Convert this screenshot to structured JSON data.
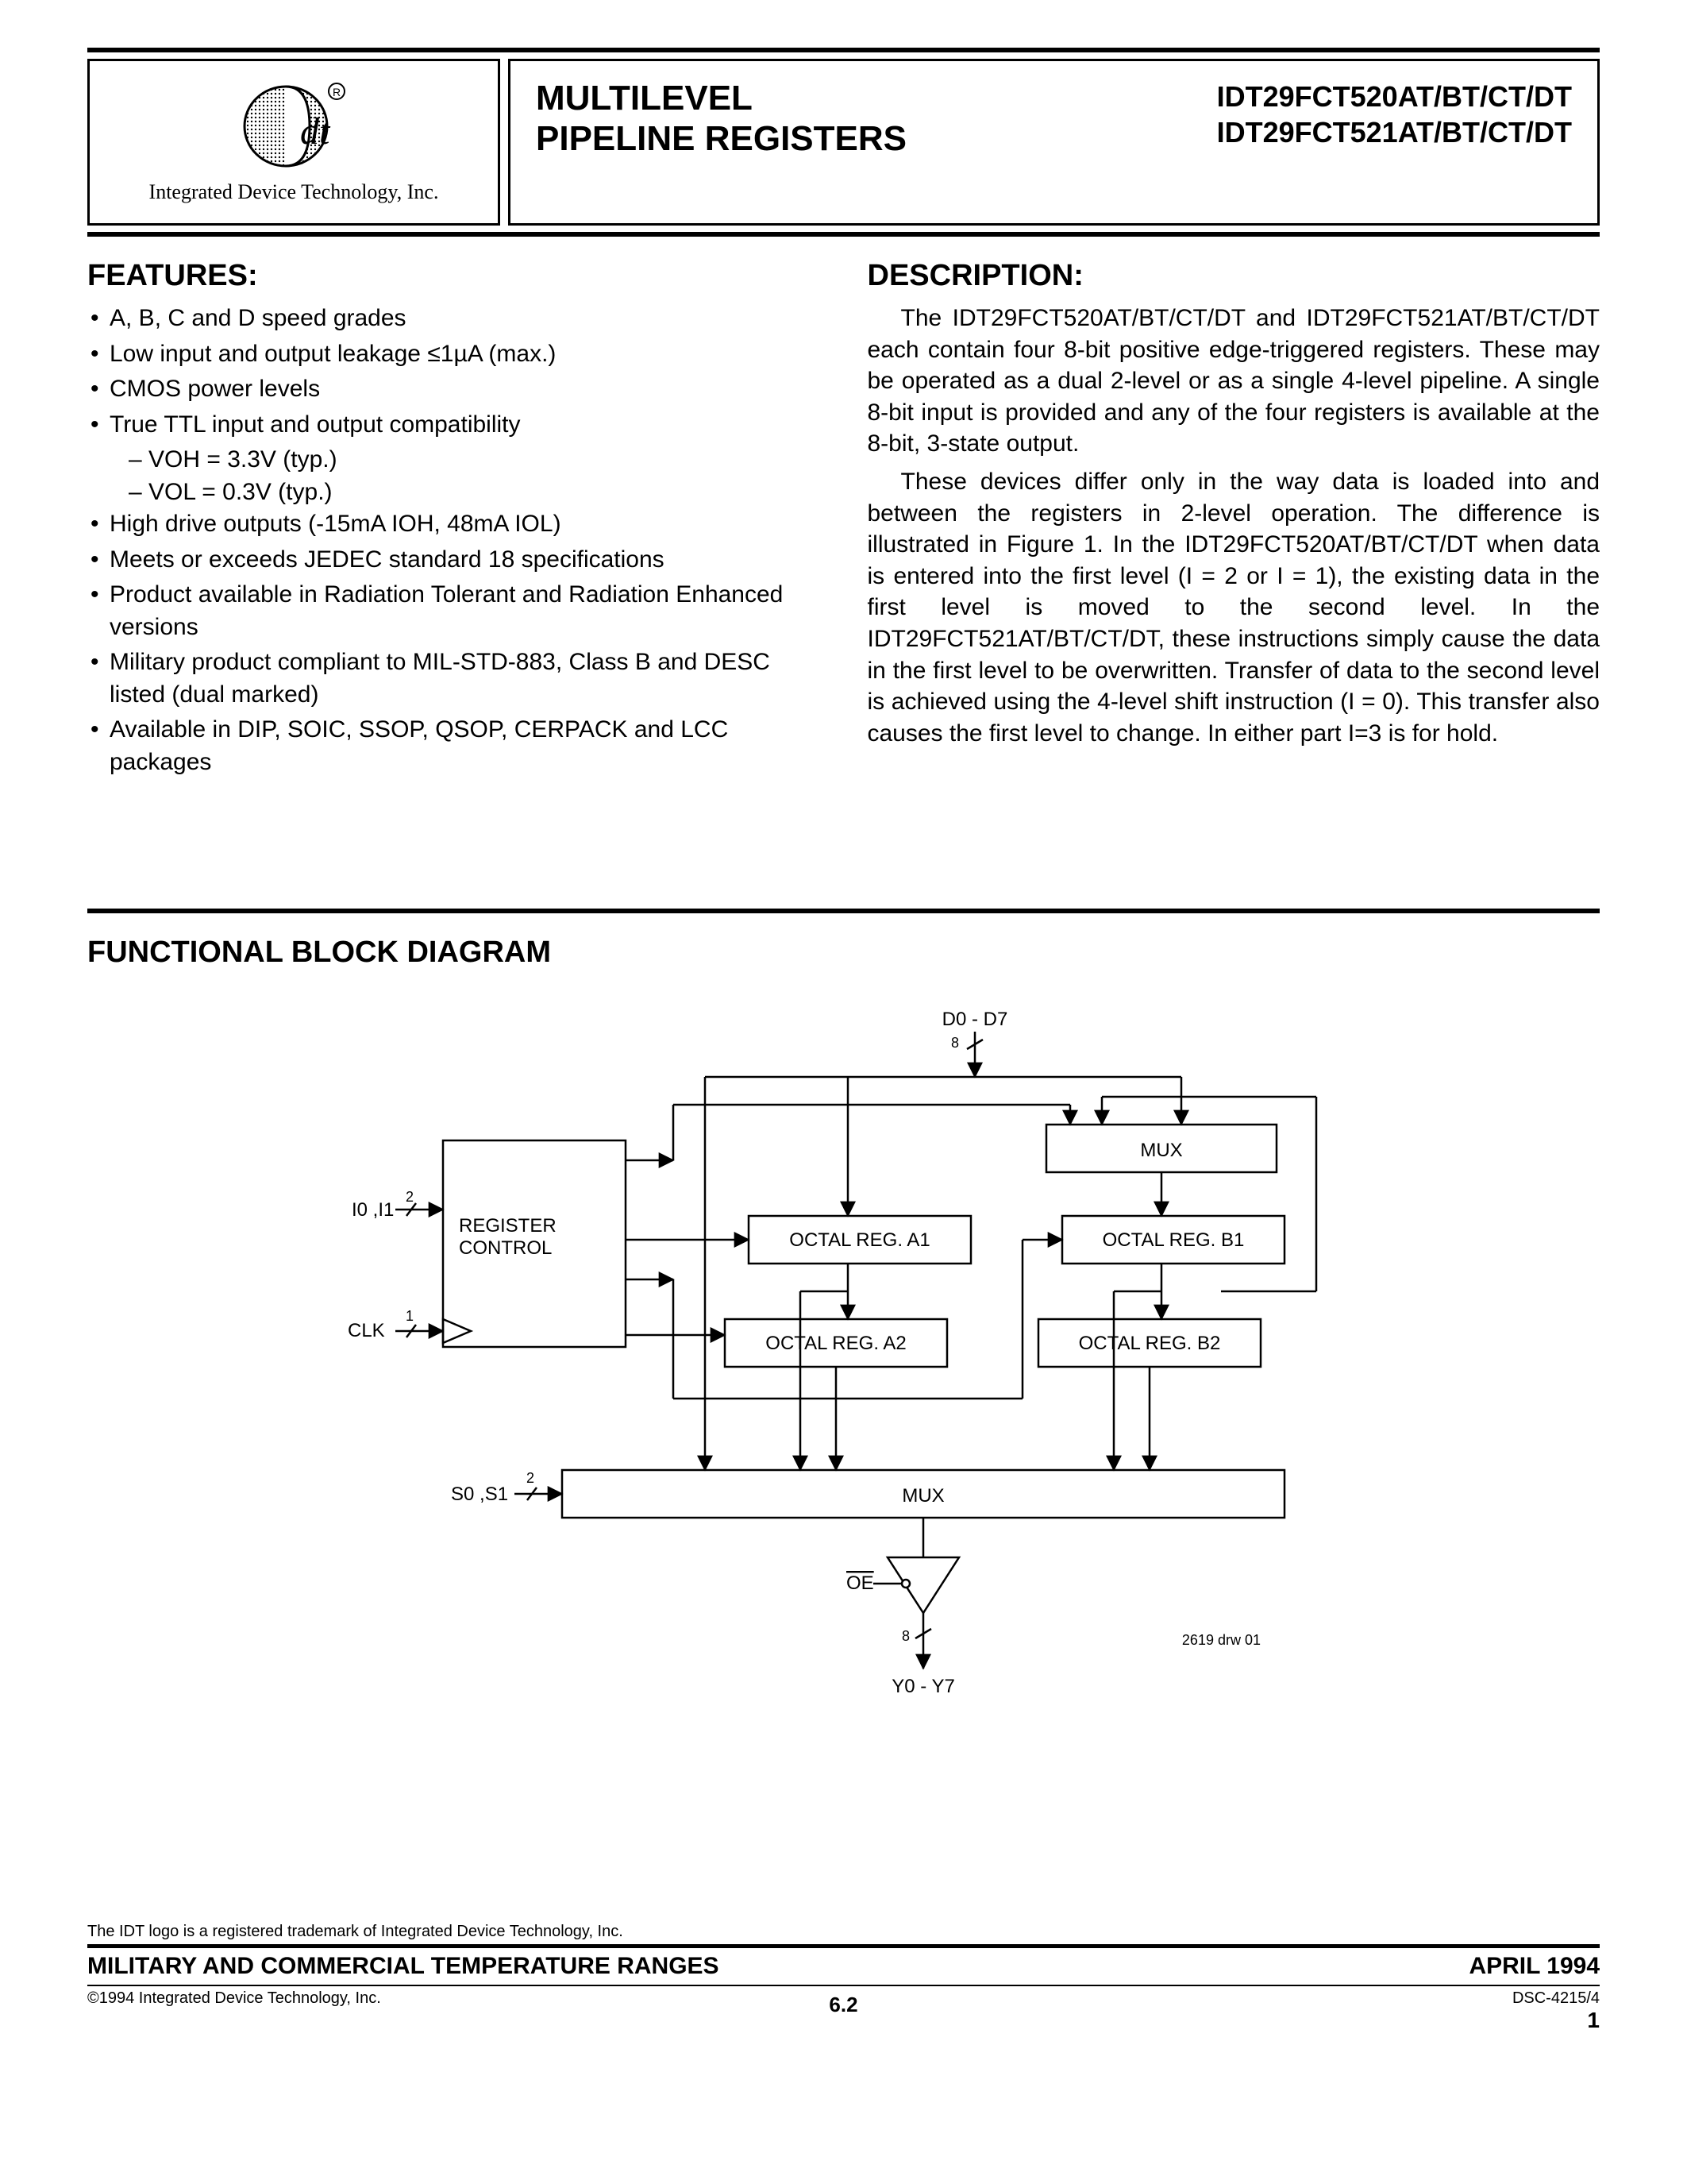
{
  "header": {
    "logo_caption": "Integrated Device Technology, Inc.",
    "title_line1": "MULTILEVEL",
    "title_line2": "PIPELINE REGISTERS",
    "partno1": "IDT29FCT520AT/BT/CT/DT",
    "partno2": "IDT29FCT521AT/BT/CT/DT"
  },
  "features": {
    "heading": "FEATURES:",
    "items": [
      "A, B, C and D speed grades",
      "Low input and output leakage ≤1µA (max.)",
      "CMOS power levels",
      "True TTL input and output compatibility",
      "High drive outputs (-15mA IOH, 48mA IOL)",
      "Meets or exceeds JEDEC standard 18 specifications",
      "Product available in Radiation Tolerant and Radiation Enhanced versions",
      "Military product compliant to MIL-STD-883, Class B and DESC listed (dual marked)",
      "Available in DIP, SOIC, SSOP, QSOP, CERPACK and LCC packages"
    ],
    "sublist_index": 3,
    "sublist": [
      "VOH = 3.3V (typ.)",
      "VOL = 0.3V (typ.)"
    ]
  },
  "description": {
    "heading": "DESCRIPTION:",
    "para1": "The IDT29FCT520AT/BT/CT/DT and IDT29FCT521AT/BT/CT/DT each contain four 8-bit positive edge-triggered registers.  These may be operated as a dual 2-level or as a single 4-level pipeline.  A single 8-bit input is provided and any of the four registers is available at the 8-bit, 3-state output.",
    "para2": "These devices differ only in the way data is loaded into and between the registers in 2-level operation.  The difference is illustrated in Figure 1.  In the IDT29FCT520AT/BT/CT/DT when data is entered into the first level (I = 2 or I = 1), the existing data in the first level is moved to the second level.  In the IDT29FCT521AT/BT/CT/DT, these instructions simply cause the data in the first level to be overwritten.  Transfer of data to the second level is achieved using the 4-level shift instruction (I = 0).  This transfer also causes the first level to change.  In either part I=3 is for hold."
  },
  "block_diagram": {
    "heading": "FUNCTIONAL BLOCK DIAGRAM",
    "drawing_id": "2619 drw 01",
    "signals": {
      "data_in": "D0 - D7",
      "data_in_width": "8",
      "i_inputs": "I0 ,I1",
      "i_width": "2",
      "clk": "CLK",
      "clk_width": "1",
      "sel": "S0 ,S1",
      "sel_width": "2",
      "oe": "OE",
      "out_width": "8",
      "data_out": "Y0 - Y7"
    },
    "blocks": {
      "reg_ctrl_l1": "REGISTER",
      "reg_ctrl_l2": "CONTROL",
      "mux_top": "MUX",
      "reg_a1": "OCTAL REG. A1",
      "reg_a2": "OCTAL REG. A2",
      "reg_b1": "OCTAL REG. B1",
      "reg_b2": "OCTAL REG. B2",
      "mux_bottom": "MUX"
    },
    "style": {
      "stroke": "#000000",
      "stroke_width": 2.5,
      "font_size_label": 24,
      "font_size_small": 18
    }
  },
  "footer": {
    "trademark": "The IDT logo is a registered trademark of Integrated Device Technology, Inc.",
    "heading": "MILITARY AND COMMERCIAL TEMPERATURE RANGES",
    "date": "APRIL 1994",
    "copyright": "©1994 Integrated Device Technology, Inc.",
    "section": "6.2",
    "doc_id": "DSC-4215/4",
    "page": "1"
  }
}
